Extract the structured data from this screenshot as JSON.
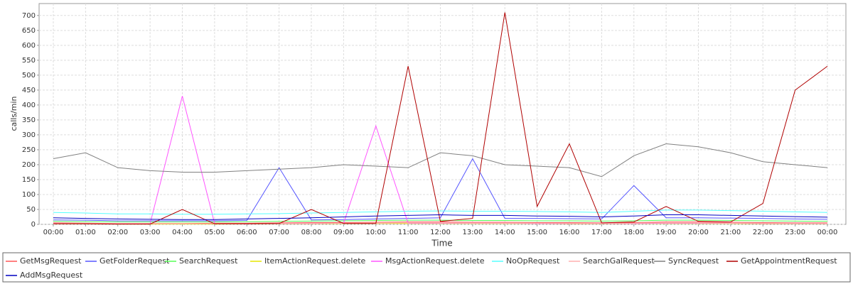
{
  "chart_data": {
    "type": "line",
    "y_label": "calls/min",
    "x_label": "Time",
    "x": [
      "00:00",
      "01:00",
      "02:00",
      "03:00",
      "04:00",
      "05:00",
      "06:00",
      "07:00",
      "08:00",
      "09:00",
      "10:00",
      "11:00",
      "12:00",
      "13:00",
      "14:00",
      "15:00",
      "16:00",
      "17:00",
      "18:00",
      "19:00",
      "20:00",
      "21:00",
      "22:00",
      "23:00",
      "00:00"
    ],
    "ylim": [
      0,
      740
    ],
    "yticks": [
      0,
      50,
      100,
      150,
      200,
      250,
      300,
      350,
      400,
      450,
      500,
      550,
      600,
      650,
      700
    ],
    "grid": true,
    "series": [
      {
        "name": "GetMsgRequest",
        "color": "#ff5555",
        "values": [
          5,
          4,
          3,
          3,
          3,
          4,
          4,
          5,
          6,
          6,
          7,
          8,
          8,
          7,
          7,
          6,
          6,
          5,
          6,
          8,
          8,
          7,
          6,
          5,
          5
        ]
      },
      {
        "name": "GetFolderRequest",
        "color": "#5555ff",
        "values": [
          15,
          14,
          12,
          12,
          12,
          12,
          13,
          190,
          15,
          16,
          18,
          20,
          22,
          220,
          20,
          20,
          19,
          18,
          130,
          22,
          22,
          21,
          20,
          18,
          17
        ]
      },
      {
        "name": "SearchRequest",
        "color": "#55ff55",
        "values": [
          10,
          9,
          8,
          8,
          8,
          8,
          9,
          10,
          11,
          12,
          13,
          14,
          14,
          13,
          13,
          12,
          12,
          11,
          12,
          14,
          14,
          13,
          12,
          11,
          10
        ]
      },
      {
        "name": "ItemActionRequest.delete",
        "color": "#e6e600",
        "values": [
          2,
          2,
          1,
          1,
          1,
          1,
          2,
          2,
          2,
          3,
          3,
          3,
          3,
          3,
          3,
          3,
          2,
          2,
          3,
          3,
          3,
          3,
          2,
          2,
          2
        ]
      },
      {
        "name": "MsgActionRequest.delete",
        "color": "#ff55ff",
        "values": [
          3,
          2,
          2,
          2,
          430,
          3,
          2,
          3,
          3,
          4,
          330,
          4,
          4,
          4,
          4,
          3,
          3,
          3,
          3,
          4,
          4,
          4,
          3,
          3,
          3
        ]
      },
      {
        "name": "NoOpRequest",
        "color": "#55ffff",
        "values": [
          40,
          38,
          35,
          35,
          34,
          34,
          35,
          36,
          38,
          40,
          42,
          44,
          45,
          44,
          44,
          43,
          42,
          40,
          44,
          48,
          48,
          46,
          44,
          42,
          40
        ]
      },
      {
        "name": "SearchGalRequest",
        "color": "#ffafaf",
        "values": [
          3,
          3,
          2,
          2,
          2,
          2,
          2,
          3,
          3,
          4,
          4,
          5,
          5,
          4,
          4,
          4,
          4,
          3,
          4,
          5,
          5,
          4,
          4,
          3,
          3
        ]
      },
      {
        "name": "SyncRequest",
        "color": "#808080",
        "values": [
          220,
          240,
          190,
          180,
          175,
          175,
          180,
          185,
          190,
          200,
          195,
          190,
          240,
          230,
          200,
          195,
          190,
          160,
          230,
          270,
          260,
          240,
          210,
          200,
          190
        ]
      },
      {
        "name": "GetAppointmentRequest",
        "color": "#b00000",
        "values": [
          2,
          2,
          1,
          1,
          50,
          2,
          2,
          3,
          50,
          3,
          3,
          530,
          10,
          20,
          710,
          60,
          270,
          5,
          8,
          60,
          10,
          8,
          70,
          450,
          530
        ]
      },
      {
        "name": "AddMsgRequest",
        "color": "#0000c0",
        "values": [
          22,
          20,
          18,
          17,
          16,
          16,
          18,
          20,
          22,
          25,
          28,
          30,
          32,
          30,
          30,
          28,
          27,
          25,
          28,
          32,
          32,
          30,
          28,
          26,
          24
        ]
      }
    ]
  }
}
